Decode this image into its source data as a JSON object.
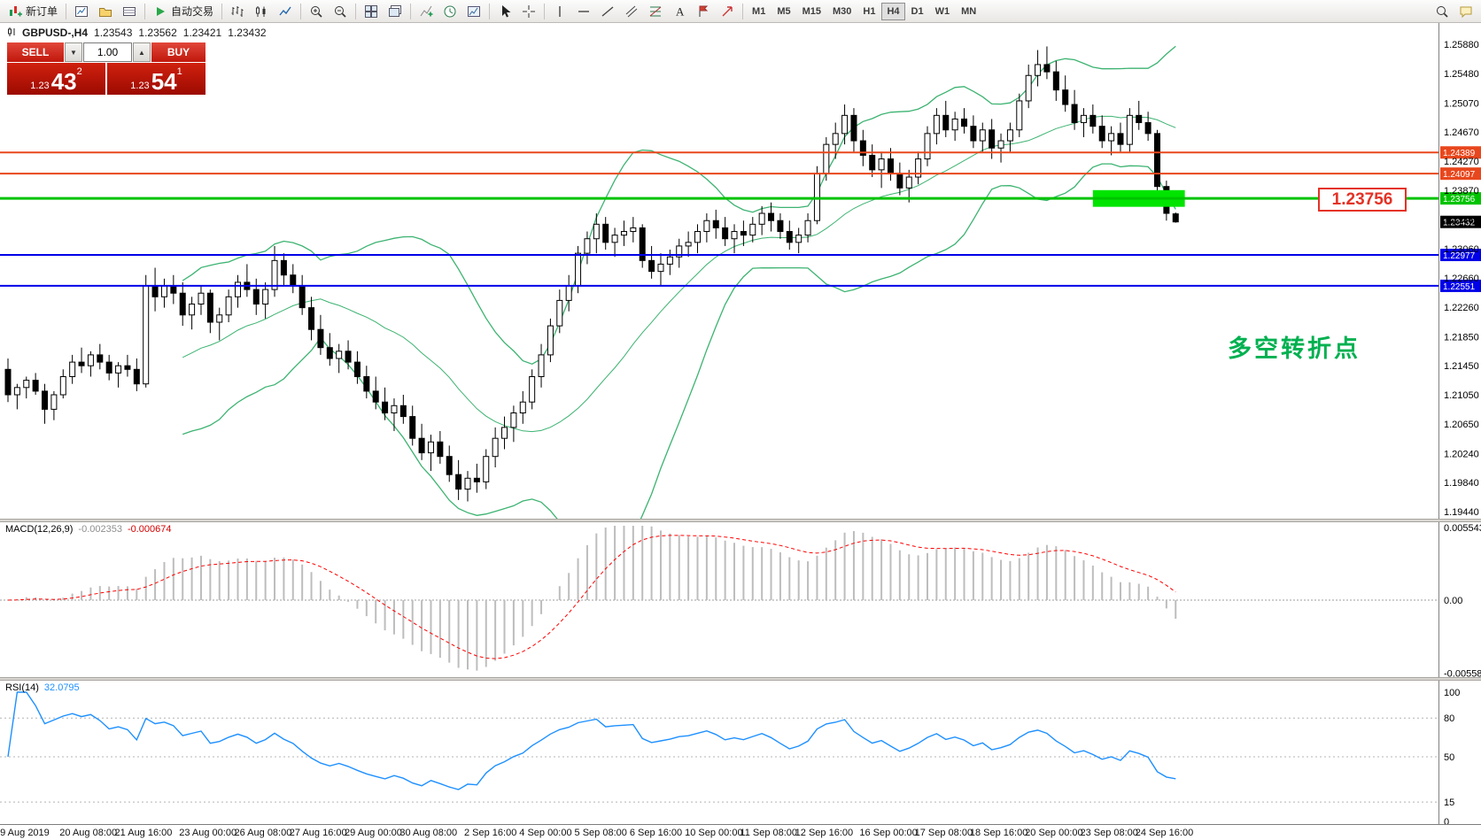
{
  "toolbar": {
    "new_order_label": "新订单",
    "auto_trading_label": "自动交易",
    "timeframes": [
      "M1",
      "M5",
      "M15",
      "M30",
      "H1",
      "H4",
      "D1",
      "W1",
      "MN"
    ],
    "active_timeframe": "H4",
    "icons": [
      "new-order-icon",
      "charts-icon",
      "profiles-icon",
      "terminal-icon",
      "auto-trading-icon",
      "chart-bars-icon",
      "chart-candles-icon",
      "chart-line-icon",
      "zoom-in-icon",
      "zoom-out-icon",
      "tile-windows-icon",
      "cascade-windows-icon",
      "indicators-icon",
      "periods-icon",
      "templates-icon",
      "cursor-icon",
      "crosshair-icon",
      "vertical-line-icon",
      "horizontal-line-icon",
      "trendline-icon",
      "channel-icon",
      "fibonacci-icon",
      "text-icon",
      "label-icon",
      "arrows-icon",
      "search-icon",
      "messages-icon"
    ]
  },
  "chart_header": {
    "symbol_title": "GBPUSD-,H4",
    "open": "1.23543",
    "high": "1.23562",
    "low": "1.23421",
    "close": "1.23432"
  },
  "trade_panel": {
    "sell_label": "SELL",
    "buy_label": "BUY",
    "volume": "1.00",
    "volume_down_glyph": "▼",
    "volume_up_glyph": "▲",
    "sell_price_small": "1.23",
    "sell_price_big": "43",
    "sell_price_sup": "2",
    "buy_price_small": "1.23",
    "buy_price_big": "54",
    "buy_price_sup": "1"
  },
  "chart_data": {
    "type": "candlestick",
    "symbol": "GBPUSD-",
    "timeframe": "H4",
    "price_scale": [
      "1.25880",
      "1.25480",
      "1.25070",
      "1.24670",
      "1.24270",
      "1.23870",
      "1.23460",
      "1.23060",
      "1.22660",
      "1.22260",
      "1.21850",
      "1.21450",
      "1.21050",
      "1.20650",
      "1.20240",
      "1.19840",
      "1.19440"
    ],
    "time_labels": [
      {
        "text": "19 Aug 2019",
        "bar": 0
      },
      {
        "text": "20 Aug 08:00",
        "bar": 6
      },
      {
        "text": "21 Aug 16:00",
        "bar": 12
      },
      {
        "text": "23 Aug 00:00",
        "bar": 19
      },
      {
        "text": "26 Aug 08:00",
        "bar": 25
      },
      {
        "text": "27 Aug 16:00",
        "bar": 31
      },
      {
        "text": "29 Aug 00:00",
        "bar": 37
      },
      {
        "text": "30 Aug 08:00",
        "bar": 43
      },
      {
        "text": "2 Sep 16:00",
        "bar": 50
      },
      {
        "text": "4 Sep 00:00",
        "bar": 56
      },
      {
        "text": "5 Sep 08:00",
        "bar": 62
      },
      {
        "text": "6 Sep 16:00",
        "bar": 68
      },
      {
        "text": "10 Sep 00:00",
        "bar": 74
      },
      {
        "text": "11 Sep 08:00",
        "bar": 80
      },
      {
        "text": "12 Sep 16:00",
        "bar": 86
      },
      {
        "text": "16 Sep 00:00",
        "bar": 93
      },
      {
        "text": "17 Sep 08:00",
        "bar": 99
      },
      {
        "text": "18 Sep 16:00",
        "bar": 105
      },
      {
        "text": "20 Sep 00:00",
        "bar": 111
      },
      {
        "text": "23 Sep 08:00",
        "bar": 117
      },
      {
        "text": "24 Sep 16:00",
        "bar": 123
      }
    ],
    "candles": [
      [
        1.214,
        1.2155,
        1.2095,
        1.2105
      ],
      [
        1.2105,
        1.212,
        1.2085,
        1.2115
      ],
      [
        1.2115,
        1.213,
        1.21,
        1.2125
      ],
      [
        1.2125,
        1.2135,
        1.2105,
        1.211
      ],
      [
        1.211,
        1.212,
        1.2065,
        1.2085
      ],
      [
        1.2085,
        1.211,
        1.207,
        1.2105
      ],
      [
        1.2105,
        1.214,
        1.21,
        1.213
      ],
      [
        1.213,
        1.216,
        1.212,
        1.215
      ],
      [
        1.215,
        1.217,
        1.2135,
        1.2145
      ],
      [
        1.2145,
        1.2165,
        1.213,
        1.216
      ],
      [
        1.216,
        1.2175,
        1.214,
        1.215
      ],
      [
        1.215,
        1.216,
        1.2125,
        1.2135
      ],
      [
        1.2135,
        1.215,
        1.2115,
        1.2145
      ],
      [
        1.2145,
        1.216,
        1.213,
        1.214
      ],
      [
        1.214,
        1.2155,
        1.211,
        1.212
      ],
      [
        1.212,
        1.227,
        1.2115,
        1.2255
      ],
      [
        1.2255,
        1.228,
        1.222,
        1.224
      ],
      [
        1.224,
        1.2265,
        1.2225,
        1.2255
      ],
      [
        1.2255,
        1.227,
        1.223,
        1.2245
      ],
      [
        1.2245,
        1.226,
        1.22,
        1.2215
      ],
      [
        1.2215,
        1.224,
        1.2195,
        1.223
      ],
      [
        1.223,
        1.2255,
        1.2215,
        1.2245
      ],
      [
        1.2245,
        1.225,
        1.219,
        1.2205
      ],
      [
        1.2205,
        1.2225,
        1.218,
        1.2215
      ],
      [
        1.2215,
        1.225,
        1.2205,
        1.224
      ],
      [
        1.224,
        1.227,
        1.2225,
        1.226
      ],
      [
        1.226,
        1.2285,
        1.224,
        1.225
      ],
      [
        1.225,
        1.2265,
        1.2215,
        1.223
      ],
      [
        1.223,
        1.226,
        1.221,
        1.225
      ],
      [
        1.225,
        1.231,
        1.224,
        1.229
      ],
      [
        1.229,
        1.23,
        1.2255,
        1.227
      ],
      [
        1.227,
        1.2285,
        1.2245,
        1.2255
      ],
      [
        1.2255,
        1.227,
        1.2215,
        1.2225
      ],
      [
        1.2225,
        1.224,
        1.218,
        1.2195
      ],
      [
        1.2195,
        1.2215,
        1.216,
        1.217
      ],
      [
        1.217,
        1.219,
        1.2145,
        1.2155
      ],
      [
        1.2155,
        1.2175,
        1.2135,
        1.2165
      ],
      [
        1.2165,
        1.218,
        1.214,
        1.215
      ],
      [
        1.215,
        1.2165,
        1.212,
        1.213
      ],
      [
        1.213,
        1.2145,
        1.21,
        1.211
      ],
      [
        1.211,
        1.213,
        1.2085,
        1.2095
      ],
      [
        1.2095,
        1.2115,
        1.207,
        1.208
      ],
      [
        1.208,
        1.21,
        1.2055,
        1.209
      ],
      [
        1.209,
        1.2105,
        1.2065,
        1.2075
      ],
      [
        1.2075,
        1.209,
        1.2035,
        1.2045
      ],
      [
        1.2045,
        1.2065,
        1.2015,
        1.2025
      ],
      [
        1.2025,
        1.205,
        1.2,
        1.204
      ],
      [
        1.204,
        1.2055,
        1.201,
        1.202
      ],
      [
        1.202,
        1.2035,
        1.1985,
        1.1995
      ],
      [
        1.1995,
        1.2015,
        1.196,
        1.1975
      ],
      [
        1.1975,
        1.2,
        1.1958,
        1.199
      ],
      [
        1.199,
        1.201,
        1.197,
        1.1985
      ],
      [
        1.1985,
        1.203,
        1.1975,
        1.202
      ],
      [
        1.202,
        1.206,
        1.2005,
        1.2045
      ],
      [
        1.2045,
        1.2075,
        1.203,
        1.206
      ],
      [
        1.206,
        1.209,
        1.204,
        1.208
      ],
      [
        1.208,
        1.211,
        1.2065,
        1.2095
      ],
      [
        1.2095,
        1.214,
        1.2085,
        1.213
      ],
      [
        1.213,
        1.2175,
        1.2115,
        1.216
      ],
      [
        1.216,
        1.221,
        1.215,
        1.22
      ],
      [
        1.22,
        1.225,
        1.219,
        1.2235
      ],
      [
        1.2235,
        1.227,
        1.222,
        1.2255
      ],
      [
        1.2255,
        1.231,
        1.2245,
        1.23
      ],
      [
        1.23,
        1.233,
        1.2285,
        1.232
      ],
      [
        1.232,
        1.2355,
        1.23,
        1.234
      ],
      [
        1.234,
        1.235,
        1.2305,
        1.2315
      ],
      [
        1.2315,
        1.2335,
        1.2295,
        1.2325
      ],
      [
        1.2325,
        1.2345,
        1.231,
        1.233
      ],
      [
        1.233,
        1.235,
        1.2315,
        1.2335
      ],
      [
        1.2335,
        1.234,
        1.228,
        1.229
      ],
      [
        1.229,
        1.231,
        1.2265,
        1.2275
      ],
      [
        1.2275,
        1.23,
        1.2255,
        1.2285
      ],
      [
        1.2285,
        1.2305,
        1.227,
        1.2295
      ],
      [
        1.2295,
        1.232,
        1.228,
        1.231
      ],
      [
        1.231,
        1.233,
        1.2295,
        1.2315
      ],
      [
        1.2315,
        1.234,
        1.23,
        1.233
      ],
      [
        1.233,
        1.2355,
        1.2315,
        1.2345
      ],
      [
        1.2345,
        1.236,
        1.232,
        1.2335
      ],
      [
        1.2335,
        1.235,
        1.231,
        1.232
      ],
      [
        1.232,
        1.234,
        1.23,
        1.233
      ],
      [
        1.233,
        1.2345,
        1.231,
        1.2325
      ],
      [
        1.2325,
        1.235,
        1.2315,
        1.234
      ],
      [
        1.234,
        1.2365,
        1.2325,
        1.2355
      ],
      [
        1.2355,
        1.237,
        1.233,
        1.2345
      ],
      [
        1.2345,
        1.2355,
        1.232,
        1.233
      ],
      [
        1.233,
        1.2345,
        1.2305,
        1.2315
      ],
      [
        1.2315,
        1.2335,
        1.23,
        1.2325
      ],
      [
        1.2325,
        1.2355,
        1.2315,
        1.2345
      ],
      [
        1.2345,
        1.242,
        1.234,
        1.241
      ],
      [
        1.241,
        1.246,
        1.24,
        1.245
      ],
      [
        1.245,
        1.248,
        1.243,
        1.2465
      ],
      [
        1.2465,
        1.2505,
        1.245,
        1.249
      ],
      [
        1.249,
        1.25,
        1.244,
        1.2455
      ],
      [
        1.2455,
        1.247,
        1.242,
        1.2435
      ],
      [
        1.2435,
        1.245,
        1.2405,
        1.2415
      ],
      [
        1.2415,
        1.244,
        1.239,
        1.243
      ],
      [
        1.243,
        1.2445,
        1.24,
        1.241
      ],
      [
        1.241,
        1.2425,
        1.238,
        1.239
      ],
      [
        1.239,
        1.2415,
        1.237,
        1.2405
      ],
      [
        1.2405,
        1.244,
        1.2395,
        1.243
      ],
      [
        1.243,
        1.2475,
        1.242,
        1.2465
      ],
      [
        1.2465,
        1.25,
        1.245,
        1.249
      ],
      [
        1.249,
        1.251,
        1.246,
        1.247
      ],
      [
        1.247,
        1.2495,
        1.2455,
        1.2485
      ],
      [
        1.2485,
        1.25,
        1.2465,
        1.2475
      ],
      [
        1.2475,
        1.249,
        1.2445,
        1.2455
      ],
      [
        1.2455,
        1.248,
        1.244,
        1.247
      ],
      [
        1.247,
        1.2485,
        1.243,
        1.2445
      ],
      [
        1.2445,
        1.2465,
        1.2425,
        1.2455
      ],
      [
        1.2455,
        1.248,
        1.244,
        1.247
      ],
      [
        1.247,
        1.252,
        1.246,
        1.251
      ],
      [
        1.251,
        1.256,
        1.25,
        1.2545
      ],
      [
        1.2545,
        1.258,
        1.253,
        1.256
      ],
      [
        1.256,
        1.2585,
        1.254,
        1.255
      ],
      [
        1.255,
        1.2565,
        1.251,
        1.2525
      ],
      [
        1.2525,
        1.2545,
        1.2495,
        1.2505
      ],
      [
        1.2505,
        1.2525,
        1.247,
        1.248
      ],
      [
        1.248,
        1.25,
        1.246,
        1.249
      ],
      [
        1.249,
        1.2505,
        1.2465,
        1.2475
      ],
      [
        1.2475,
        1.249,
        1.2445,
        1.2455
      ],
      [
        1.2455,
        1.2475,
        1.2435,
        1.2465
      ],
      [
        1.2465,
        1.248,
        1.244,
        1.245
      ],
      [
        1.245,
        1.25,
        1.244,
        1.249
      ],
      [
        1.249,
        1.251,
        1.247,
        1.248
      ],
      [
        1.248,
        1.2495,
        1.2455,
        1.2465
      ],
      [
        1.2465,
        1.247,
        1.238,
        1.2392
      ],
      [
        1.2392,
        1.24,
        1.2345,
        1.2355
      ],
      [
        1.23543,
        1.23562,
        1.23421,
        1.23432
      ]
    ],
    "bollinger": {
      "period": 20,
      "deviation": 2,
      "color": "#3cb371"
    },
    "levels": [
      {
        "price": 1.24389,
        "label": "1.24389",
        "color": "#e8471d",
        "width": 2
      },
      {
        "price": 1.24097,
        "label": "1.24097",
        "color": "#e8471d",
        "width": 2
      },
      {
        "price": 1.23756,
        "label": "1.23756",
        "color": "#00c300",
        "width": 3
      },
      {
        "price": 1.22977,
        "label": "1.22977",
        "color": "#0000e8",
        "width": 2
      },
      {
        "price": 1.22551,
        "label": "1.22551",
        "color": "#0000e8",
        "width": 2
      }
    ],
    "current_price": {
      "value": 1.23432,
      "label": "1.23432",
      "color": "#000000"
    },
    "annotations": {
      "highlight_rect": {
        "bar_start": 118,
        "bar_end": 128,
        "price_top": 1.2387,
        "price_bottom": 1.2364,
        "color": "#00e400"
      },
      "price_callout": {
        "text": "1.23756",
        "color": "#e43225"
      },
      "note": {
        "text": "多空转折点",
        "color": "#00b050"
      }
    },
    "macd": {
      "label": "MACD(12,26,9)",
      "fast": 12,
      "slow": 26,
      "signal": 9,
      "value_main": "-0.002353",
      "value_signal": "-0.000674",
      "scale": [
        "0.005543",
        "0.00",
        "-0.005583"
      ],
      "histogram_color": "#bdbdbd",
      "signal_color": "#ff0000"
    },
    "rsi": {
      "label": "RSI(14)",
      "period": 14,
      "value": "32.0795",
      "scale": [
        "100",
        "80",
        "50",
        "15",
        "0"
      ],
      "levels": [
        80,
        50,
        15
      ],
      "color": "#1e90ff"
    }
  }
}
